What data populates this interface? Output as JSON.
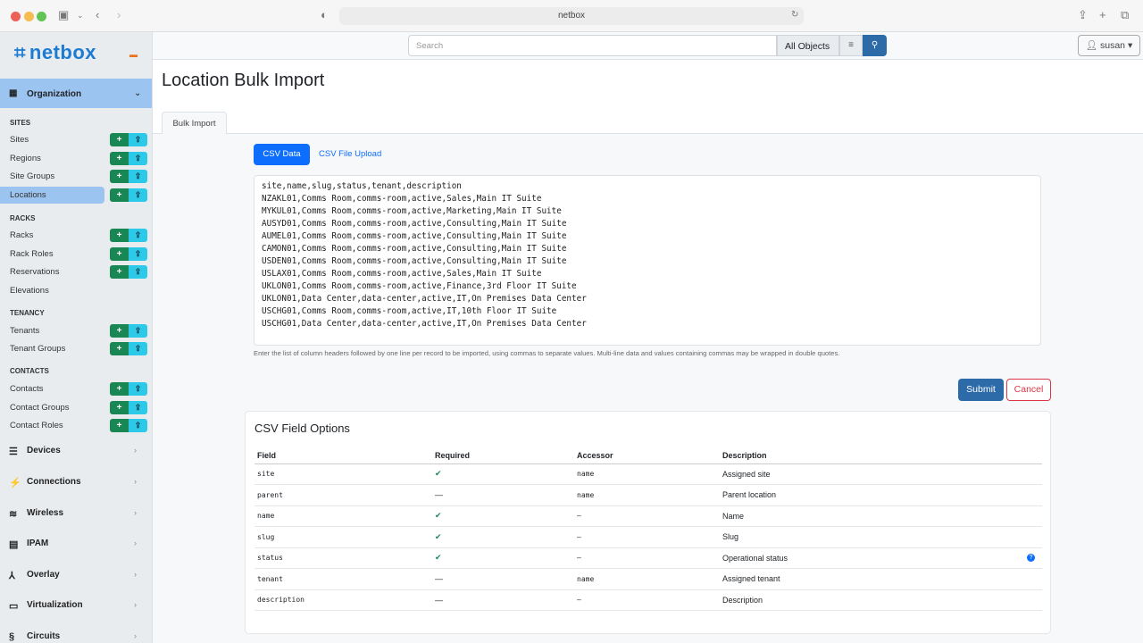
{
  "browser": {
    "url": "netbox"
  },
  "sidebar": {
    "logo": "netbox",
    "organization": "Organization",
    "sections": [
      {
        "title": "SITES",
        "items": [
          "Sites",
          "Regions",
          "Site Groups",
          "Locations"
        ]
      },
      {
        "title": "RACKS",
        "items": [
          "Racks",
          "Rack Roles",
          "Reservations",
          "Elevations"
        ]
      },
      {
        "title": "TENANCY",
        "items": [
          "Tenants",
          "Tenant Groups"
        ]
      },
      {
        "title": "CONTACTS",
        "items": [
          "Contacts",
          "Contact Groups",
          "Contact Roles"
        ]
      }
    ],
    "active_item": "Locations",
    "groups": [
      "Devices",
      "Connections",
      "Wireless",
      "IPAM",
      "Overlay",
      "Virtualization",
      "Circuits"
    ]
  },
  "topbar": {
    "search_placeholder": "Search",
    "scope": "All Objects",
    "user": "susan"
  },
  "page": {
    "title": "Location Bulk Import",
    "tab": "Bulk Import",
    "pills": [
      "CSV Data",
      "CSV File Upload"
    ],
    "csv": "site,name,slug,status,tenant,description\nNZAKL01,Comms Room,comms-room,active,Sales,Main IT Suite\nMYKUL01,Comms Room,comms-room,active,Marketing,Main IT Suite\nAUSYD01,Comms Room,comms-room,active,Consulting,Main IT Suite\nAUMEL01,Comms Room,comms-room,active,Consulting,Main IT Suite\nCAMON01,Comms Room,comms-room,active,Consulting,Main IT Suite\nUSDEN01,Comms Room,comms-room,active,Consulting,Main IT Suite\nUSLAX01,Comms Room,comms-room,active,Sales,Main IT Suite\nUKLON01,Comms Room,comms-room,active,Finance,3rd Floor IT Suite\nUKLON01,Data Center,data-center,active,IT,On Premises Data Center\nUSCHG01,Comms Room,comms-room,active,IT,10th Floor IT Suite\nUSCHG01,Data Center,data-center,active,IT,On Premises Data Center",
    "help": "Enter the list of column headers followed by one line per record to be imported, using commas to separate values. Multi-line data and values containing commas may be wrapped in double quotes.",
    "submit": "Submit",
    "cancel": "Cancel"
  },
  "fields": {
    "title": "CSV Field Options",
    "headers": [
      "Field",
      "Required",
      "Accessor",
      "Description"
    ],
    "rows": [
      [
        "site",
        "✔",
        "name",
        "Assigned site"
      ],
      [
        "parent",
        "—",
        "name",
        "Parent location"
      ],
      [
        "name",
        "✔",
        "—",
        "Name"
      ],
      [
        "slug",
        "✔",
        "—",
        "Slug"
      ],
      [
        "status",
        "✔",
        "—",
        "Operational status"
      ],
      [
        "tenant",
        "—",
        "name",
        "Assigned tenant"
      ],
      [
        "description",
        "—",
        "—",
        "Description"
      ]
    ]
  }
}
